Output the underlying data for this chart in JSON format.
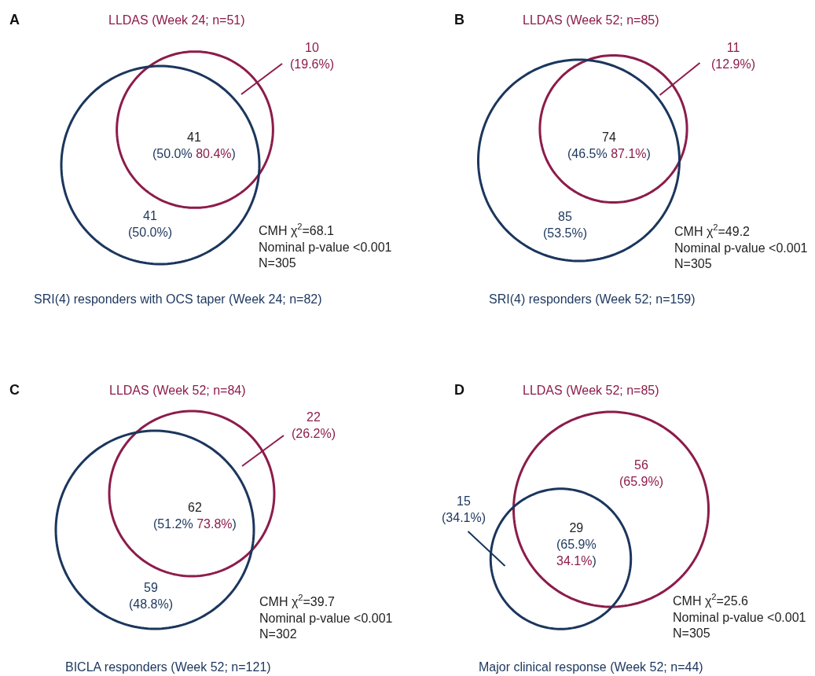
{
  "chart_data": [
    {
      "type": "other",
      "title": "A",
      "subtitle": "LLDAS (Week 24; n=51)",
      "xlabel": "SRI(4) responders with OCS taper (Week 24; n=82)",
      "categories": [
        null,
        null,
        null
      ],
      "values": [
        10,
        41,
        41
      ],
      "value_labels": [
        "10\n(19.6%)",
        "41\n(50.0% 80.4%)",
        "41\n(50.0%)"
      ],
      "colors": [
        "#8c1c4b",
        "#222222",
        "#1b365d"
      ],
      "annotations": [
        "CMH χ$^{2}$=68.1\nNominal p-value <0.001\nN=305"
      ]
    },
    {
      "type": "other",
      "title": "B",
      "subtitle": "LLDAS (Week 52; n=85)",
      "xlabel": "SRI(4) responders (Week 52; n=159)",
      "categories": [
        null,
        null,
        null
      ],
      "values": [
        11,
        74,
        85
      ],
      "value_labels": [
        "11\n(12.9%)",
        "74\n(46.5% 87.1%)",
        "85\n(53.5%)"
      ],
      "colors": [
        "#8c1c4b",
        "#222222",
        "#1b365d"
      ],
      "annotations": [
        "CMH χ$^{2}$=49.2\nNominal p-value <0.001\nN=305"
      ]
    },
    {
      "type": "other",
      "title": "C",
      "subtitle": "LLDAS (Week 52; n=84)",
      "xlabel": "BICLA responders (Week 52; n=121)",
      "categories": [
        null,
        null,
        null
      ],
      "values": [
        22,
        62,
        59
      ],
      "value_labels": [
        "22\n(26.2%)",
        "62\n(51.2% 73.8%)",
        "59\n(48.8%)"
      ],
      "colors": [
        "#8c1c4b",
        "#222222",
        "#1b365d"
      ],
      "annotations": [
        "CMH χ$^{2}$=39.7\nNominal p-value <0.001\nN=302"
      ]
    },
    {
      "type": "other",
      "title": "D",
      "subtitle": "LLDAS (Week 52; n=85)",
      "xlabel": "Major clinical response (Week 52; n=44)",
      "categories": [
        null,
        null,
        null
      ],
      "values": [
        56,
        15,
        29
      ],
      "value_labels": [
        "56\n(65.9%)",
        "15\n(34.1%)",
        "29\n(65.9% 34.1%)"
      ],
      "colors": [
        "#8c1c4b",
        "#1b365d",
        "#222222"
      ],
      "annotations": [
        "CMH χ$^{2}$=25.6\nNominal p-value <0.001\nN=305"
      ]
    }
  ]
}
